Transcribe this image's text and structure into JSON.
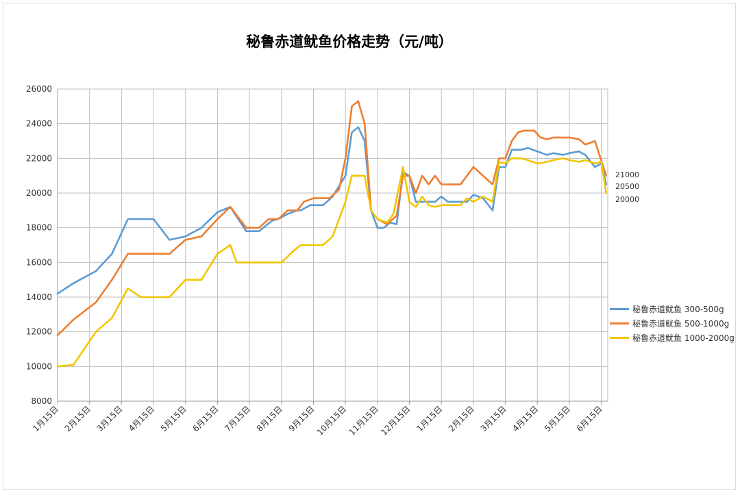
{
  "chart_data": {
    "type": "line",
    "title": "秘鲁赤道鱿鱼价格走势（元/吨）",
    "xlabel": "",
    "ylabel": "",
    "ylim": [
      8000,
      26000
    ],
    "yticks": [
      8000,
      10000,
      12000,
      14000,
      16000,
      18000,
      20000,
      22000,
      24000,
      26000
    ],
    "xlim": [
      0,
      17.2
    ],
    "x_tick_labels": [
      "1月15日",
      "2月15日",
      "3月15日",
      "4月15日",
      "5月15日",
      "6月15日",
      "7月15日",
      "8月15日",
      "9月15日",
      "10月15日",
      "11月15日",
      "12月15日",
      "1月15日",
      "2月15日",
      "3月15日",
      "4月15日",
      "5月15日",
      "6月15日"
    ],
    "grid": true,
    "legend_position": "right",
    "series": [
      {
        "name": "秘鲁赤道鱿鱼 300-500g",
        "color": "#5b9bd5",
        "points": [
          [
            0,
            14200
          ],
          [
            0.5,
            14800
          ],
          [
            1.2,
            15500
          ],
          [
            1.7,
            16500
          ],
          [
            2.2,
            18500
          ],
          [
            2.6,
            18500
          ],
          [
            3.0,
            18500
          ],
          [
            3.5,
            17300
          ],
          [
            4.0,
            17500
          ],
          [
            4.5,
            18000
          ],
          [
            5.0,
            18900
          ],
          [
            5.4,
            19200
          ],
          [
            5.9,
            17800
          ],
          [
            6.3,
            17800
          ],
          [
            6.7,
            18400
          ],
          [
            6.9,
            18500
          ],
          [
            7.2,
            18800
          ],
          [
            7.5,
            19000
          ],
          [
            7.6,
            19000
          ],
          [
            7.9,
            19300
          ],
          [
            8.3,
            19300
          ],
          [
            8.6,
            19800
          ],
          [
            9.0,
            21000
          ],
          [
            9.2,
            23500
          ],
          [
            9.4,
            23800
          ],
          [
            9.6,
            23000
          ],
          [
            9.8,
            19000
          ],
          [
            10.0,
            18000
          ],
          [
            10.2,
            18000
          ],
          [
            10.4,
            18300
          ],
          [
            10.6,
            18200
          ],
          [
            10.8,
            21200
          ],
          [
            11.0,
            21000
          ],
          [
            11.2,
            19500
          ],
          [
            11.5,
            19500
          ],
          [
            11.8,
            19500
          ],
          [
            12.0,
            19800
          ],
          [
            12.2,
            19500
          ],
          [
            12.5,
            19500
          ],
          [
            12.8,
            19500
          ],
          [
            13.0,
            19900
          ],
          [
            13.3,
            19700
          ],
          [
            13.6,
            19000
          ],
          [
            13.8,
            21500
          ],
          [
            14.0,
            21500
          ],
          [
            14.2,
            22500
          ],
          [
            14.5,
            22500
          ],
          [
            14.7,
            22600
          ],
          [
            15.0,
            22400
          ],
          [
            15.3,
            22200
          ],
          [
            15.5,
            22300
          ],
          [
            15.8,
            22200
          ],
          [
            16.0,
            22300
          ],
          [
            16.3,
            22400
          ],
          [
            16.5,
            22200
          ],
          [
            16.8,
            21500
          ],
          [
            17.0,
            21700
          ],
          [
            17.15,
            20500
          ]
        ]
      },
      {
        "name": "秘鲁赤道鱿鱼 500-1000g",
        "color": "#ed7d31",
        "points": [
          [
            0,
            11800
          ],
          [
            0.5,
            12700
          ],
          [
            1.2,
            13700
          ],
          [
            1.7,
            15000
          ],
          [
            2.2,
            16500
          ],
          [
            2.6,
            16500
          ],
          [
            3.0,
            16500
          ],
          [
            3.5,
            16500
          ],
          [
            4.0,
            17300
          ],
          [
            4.5,
            17500
          ],
          [
            5.0,
            18500
          ],
          [
            5.4,
            19200
          ],
          [
            5.9,
            18000
          ],
          [
            6.3,
            18000
          ],
          [
            6.6,
            18500
          ],
          [
            6.9,
            18500
          ],
          [
            7.2,
            19000
          ],
          [
            7.5,
            19000
          ],
          [
            7.7,
            19500
          ],
          [
            8.0,
            19700
          ],
          [
            8.3,
            19700
          ],
          [
            8.5,
            19700
          ],
          [
            8.8,
            20200
          ],
          [
            9.0,
            22000
          ],
          [
            9.2,
            25000
          ],
          [
            9.4,
            25300
          ],
          [
            9.6,
            24000
          ],
          [
            9.8,
            19000
          ],
          [
            10.0,
            18500
          ],
          [
            10.3,
            18200
          ],
          [
            10.6,
            18700
          ],
          [
            10.8,
            21000
          ],
          [
            11.0,
            21000
          ],
          [
            11.2,
            20000
          ],
          [
            11.4,
            21000
          ],
          [
            11.6,
            20500
          ],
          [
            11.8,
            21000
          ],
          [
            12.0,
            20500
          ],
          [
            12.3,
            20500
          ],
          [
            12.6,
            20500
          ],
          [
            12.8,
            21000
          ],
          [
            13.0,
            21500
          ],
          [
            13.3,
            21000
          ],
          [
            13.6,
            20500
          ],
          [
            13.8,
            22000
          ],
          [
            14.0,
            22000
          ],
          [
            14.2,
            23000
          ],
          [
            14.4,
            23500
          ],
          [
            14.6,
            23600
          ],
          [
            14.9,
            23600
          ],
          [
            15.1,
            23200
          ],
          [
            15.3,
            23100
          ],
          [
            15.5,
            23200
          ],
          [
            15.8,
            23200
          ],
          [
            16.0,
            23200
          ],
          [
            16.3,
            23100
          ],
          [
            16.5,
            22800
          ],
          [
            16.8,
            23000
          ],
          [
            17.15,
            21000
          ]
        ]
      },
      {
        "name": "秘鲁赤道鱿鱼 1000-2000g",
        "color": "#f2c500",
        "points": [
          [
            0,
            10000
          ],
          [
            0.5,
            10100
          ],
          [
            1.2,
            12000
          ],
          [
            1.7,
            12800
          ],
          [
            2.2,
            14500
          ],
          [
            2.6,
            14000
          ],
          [
            3.0,
            14000
          ],
          [
            3.5,
            14000
          ],
          [
            4.0,
            15000
          ],
          [
            4.5,
            15000
          ],
          [
            5.0,
            16500
          ],
          [
            5.4,
            17000
          ],
          [
            5.6,
            16000
          ],
          [
            6.0,
            16000
          ],
          [
            6.4,
            16000
          ],
          [
            6.7,
            16000
          ],
          [
            7.0,
            16000
          ],
          [
            7.4,
            16700
          ],
          [
            7.6,
            17000
          ],
          [
            8.0,
            17000
          ],
          [
            8.3,
            17000
          ],
          [
            8.6,
            17500
          ],
          [
            9.0,
            19500
          ],
          [
            9.2,
            21000
          ],
          [
            9.4,
            21000
          ],
          [
            9.6,
            21000
          ],
          [
            9.8,
            19000
          ],
          [
            10.0,
            18500
          ],
          [
            10.3,
            18300
          ],
          [
            10.5,
            18800
          ],
          [
            10.8,
            21500
          ],
          [
            11.0,
            19500
          ],
          [
            11.2,
            19200
          ],
          [
            11.4,
            19800
          ],
          [
            11.6,
            19300
          ],
          [
            11.8,
            19200
          ],
          [
            12.0,
            19300
          ],
          [
            12.3,
            19300
          ],
          [
            12.6,
            19300
          ],
          [
            12.8,
            19700
          ],
          [
            13.0,
            19500
          ],
          [
            13.3,
            19800
          ],
          [
            13.6,
            19500
          ],
          [
            13.8,
            21800
          ],
          [
            14.0,
            21700
          ],
          [
            14.2,
            22000
          ],
          [
            14.5,
            22000
          ],
          [
            14.7,
            21900
          ],
          [
            15.0,
            21700
          ],
          [
            15.3,
            21800
          ],
          [
            15.5,
            21900
          ],
          [
            15.8,
            22000
          ],
          [
            16.0,
            21900
          ],
          [
            16.3,
            21800
          ],
          [
            16.5,
            21900
          ],
          [
            16.8,
            21700
          ],
          [
            17.0,
            21800
          ],
          [
            17.15,
            20000
          ]
        ]
      }
    ],
    "end_labels": [
      "21000",
      "20500",
      "20000"
    ]
  }
}
